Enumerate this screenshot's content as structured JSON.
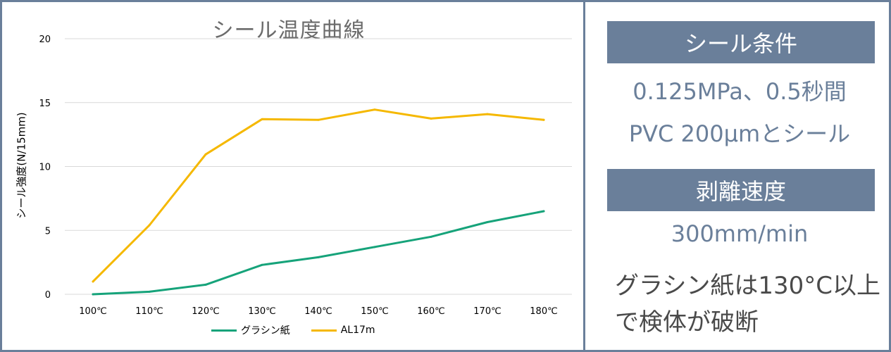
{
  "chart_data": {
    "type": "line",
    "title": "シール温度曲線",
    "ylabel": "シール強度(N/15mm)",
    "xlabel": "",
    "categories": [
      "100℃",
      "110℃",
      "120℃",
      "130℃",
      "140℃",
      "150℃",
      "160℃",
      "170℃",
      "180℃"
    ],
    "ylim": [
      0,
      20
    ],
    "yticks": [
      0,
      5,
      10,
      15,
      20
    ],
    "grid": true,
    "legend_position": "bottom",
    "series": [
      {
        "name": "グラシン紙",
        "color": "#16a37a",
        "values": [
          0.0,
          0.2,
          0.75,
          2.3,
          2.9,
          3.7,
          4.5,
          5.65,
          6.5
        ]
      },
      {
        "name": "AL17m",
        "color": "#f5b800",
        "values": [
          1.0,
          5.4,
          10.95,
          13.7,
          13.65,
          14.45,
          13.75,
          14.1,
          13.65
        ]
      }
    ]
  },
  "panel": {
    "seal_conditions_heading": "シール条件",
    "pressure_time": "0.125MPa、0.5秒間",
    "seal_partner": "PVC 200µmとシール",
    "peel_speed_heading": "剥離速度",
    "peel_speed": "300mm/min",
    "note_line1": "グラシン紙は130°C以上",
    "note_line2": "で検体が破断"
  },
  "colors": {
    "accent": "#6a7f9a",
    "grid": "#d9d9d9"
  }
}
